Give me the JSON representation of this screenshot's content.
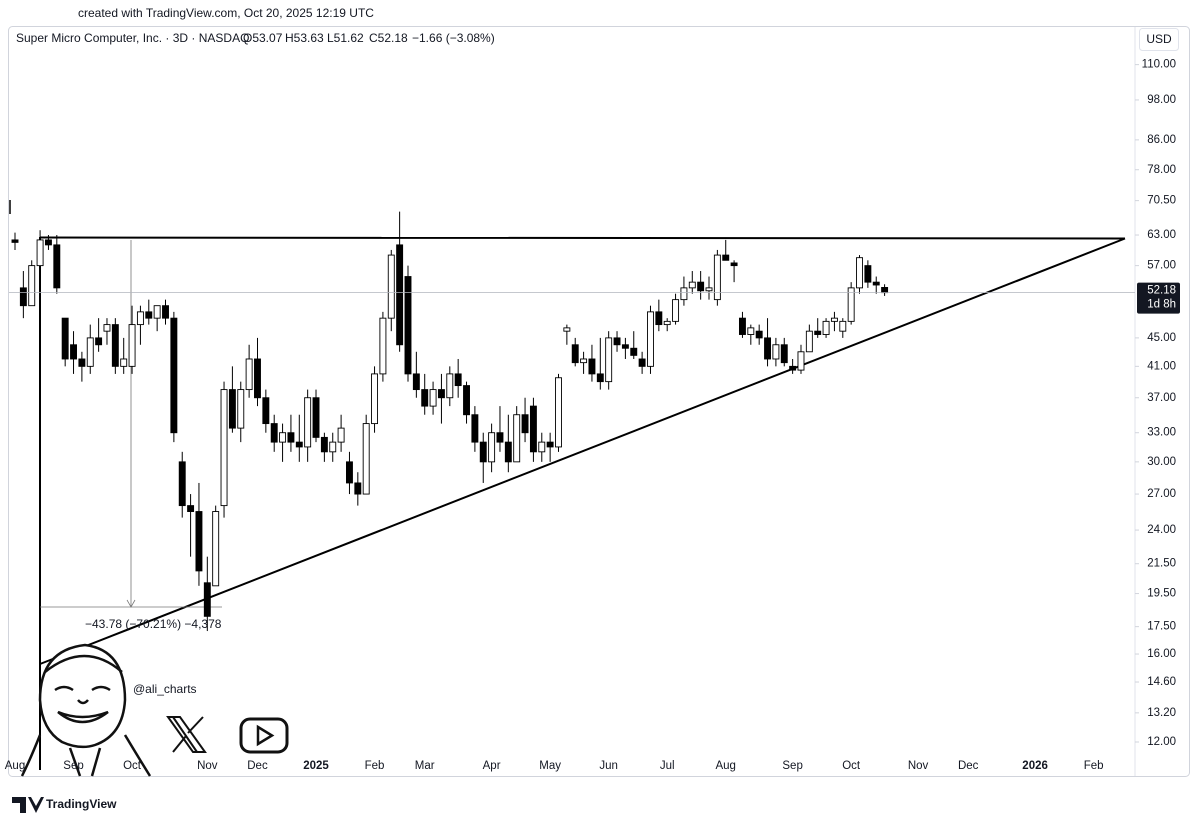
{
  "created": "created with TradingView.com, Oct 20, 2025 12:19 UTC",
  "watermark": "@ali_charts",
  "brand": "TradingView",
  "chart_data": {
    "type": "candlestick",
    "title": "Super Micro Computer, Inc. · 3D · NASDAQ",
    "ohlc": [
      "O53.07",
      "H53.63",
      "L51.62",
      "C52.18",
      "−1.66 (−3.08%)"
    ],
    "currency": "USD",
    "last_price": 52.18,
    "countdown": "1d 8h",
    "measure_label": "−43.78 (−70.21%) −4,378",
    "log_scale": true,
    "up_color": "#ffffff",
    "down_color": "#000000",
    "ylim": [
      11.5,
      124
    ],
    "yticks": [
      {
        "value": 110,
        "label": "110.00"
      },
      {
        "value": 98,
        "label": "98.00"
      },
      {
        "value": 86,
        "label": "86.00"
      },
      {
        "value": 78,
        "label": "78.00"
      },
      {
        "value": 70.5,
        "label": "70.50"
      },
      {
        "value": 63,
        "label": "63.00"
      },
      {
        "value": 57,
        "label": "57.00"
      },
      {
        "value": 45,
        "label": "45.00"
      },
      {
        "value": 41,
        "label": "41.00"
      },
      {
        "value": 37,
        "label": "37.00"
      },
      {
        "value": 33,
        "label": "33.00"
      },
      {
        "value": 30,
        "label": "30.00"
      },
      {
        "value": 27,
        "label": "27.00"
      },
      {
        "value": 24,
        "label": "24.00"
      },
      {
        "value": 21.5,
        "label": "21.50"
      },
      {
        "value": 19.5,
        "label": "19.50"
      },
      {
        "value": 17.5,
        "label": "17.50"
      },
      {
        "value": 16,
        "label": "16.00"
      },
      {
        "value": 14.6,
        "label": "14.60"
      },
      {
        "value": 13.2,
        "label": "13.20"
      },
      {
        "value": 12,
        "label": "12.00"
      }
    ],
    "categories": [
      "Aug",
      null,
      null,
      null,
      null,
      null,
      null,
      "Sep",
      null,
      null,
      null,
      null,
      null,
      null,
      "Oct",
      null,
      null,
      null,
      null,
      null,
      null,
      null,
      null,
      "Nov",
      null,
      null,
      null,
      null,
      null,
      "Dec",
      null,
      null,
      null,
      null,
      null,
      null,
      "2025",
      null,
      null,
      null,
      null,
      null,
      null,
      "Feb",
      null,
      null,
      null,
      null,
      null,
      "Mar",
      null,
      null,
      null,
      null,
      null,
      null,
      null,
      "Apr",
      null,
      null,
      null,
      null,
      null,
      null,
      "May",
      null,
      null,
      null,
      null,
      null,
      null,
      "Jun",
      null,
      null,
      null,
      null,
      null,
      null,
      "Jul",
      null,
      null,
      null,
      null,
      null,
      null,
      "Aug",
      null,
      null,
      null,
      null,
      null,
      null,
      null,
      "Sep",
      null,
      null,
      null,
      null,
      null,
      null,
      "Oct",
      null,
      null,
      null,
      null,
      null,
      null,
      null,
      "Nov",
      null,
      null,
      null,
      null,
      null,
      "Dec",
      null,
      null,
      null,
      null,
      null,
      null,
      null,
      "2026",
      null,
      null,
      null,
      null,
      null,
      null,
      "Feb",
      null
    ],
    "open": [
      62,
      53,
      50,
      57,
      62,
      61,
      48,
      44,
      42,
      41,
      45,
      46,
      47,
      41,
      41,
      47,
      49,
      48,
      50,
      48,
      30,
      26,
      25.5,
      20.2,
      20,
      26,
      38,
      33.5,
      38,
      42,
      37,
      34,
      32,
      33,
      32,
      31.5,
      37,
      32.5,
      31,
      32,
      30,
      28,
      27,
      34,
      40,
      48,
      61,
      55,
      40,
      38,
      36,
      38,
      37,
      40,
      38.5,
      35,
      32,
      30,
      33,
      32,
      30,
      35,
      36,
      31,
      32,
      31.5,
      46,
      44,
      41.5,
      42,
      40,
      39,
      45,
      44,
      43.5,
      42,
      41,
      49,
      47,
      47.5,
      51,
      53,
      54,
      52.5,
      51,
      59,
      57.5,
      48,
      45.5,
      46,
      45,
      42,
      44,
      41,
      40.5,
      43,
      46,
      45.5,
      47.5,
      46,
      47.5,
      53,
      57,
      54,
      53.07,
      null,
      null,
      null,
      null,
      null,
      null,
      null,
      null,
      null,
      null,
      null,
      null,
      null,
      null,
      null,
      null,
      null,
      null,
      null,
      null,
      null,
      null,
      null,
      null,
      null,
      null
    ],
    "high": [
      63.5,
      56,
      58,
      64,
      63,
      63,
      48,
      46,
      43,
      47,
      48,
      48,
      48,
      45,
      50,
      50,
      51,
      50,
      51,
      49,
      31,
      27,
      28,
      22,
      26,
      39,
      41,
      39,
      44,
      45,
      38,
      35,
      34,
      35,
      35,
      38,
      38,
      33,
      33,
      35,
      31,
      29,
      35,
      41,
      49,
      60,
      68,
      57,
      43,
      40,
      39,
      40,
      41,
      42,
      39,
      36,
      33,
      34,
      36,
      35,
      36,
      37,
      37,
      33,
      33,
      40,
      47,
      45,
      43,
      44,
      45,
      46,
      46,
      45,
      46,
      43,
      50,
      51,
      48,
      52,
      55,
      56,
      56,
      55,
      60,
      62,
      58,
      49,
      47,
      47,
      48,
      45,
      45,
      42,
      44,
      47,
      48,
      48,
      49,
      48,
      54,
      59,
      58,
      55,
      53.63,
      null,
      null,
      null,
      null,
      null,
      null,
      null,
      null,
      null,
      null,
      null,
      null,
      null,
      null,
      null,
      null,
      null,
      null,
      null,
      null,
      null,
      null,
      null,
      null,
      null,
      null
    ],
    "low": [
      60,
      48,
      50,
      56,
      60,
      52,
      41,
      40,
      39,
      40,
      43,
      44,
      40,
      40,
      40,
      44,
      47,
      46,
      47,
      32,
      25,
      22,
      20,
      17.25,
      20,
      25,
      33,
      32,
      37,
      36,
      33,
      31,
      30,
      31,
      30,
      30,
      32,
      30,
      30,
      31,
      27,
      26,
      27,
      33,
      39,
      46,
      43,
      39,
      37,
      35,
      35,
      34,
      36,
      37,
      34,
      31,
      28,
      29,
      31,
      29,
      30,
      32,
      30,
      30,
      30,
      31,
      44,
      41,
      40,
      39,
      38,
      38,
      43,
      42,
      42,
      40,
      40,
      46,
      46,
      47,
      50,
      52,
      51,
      51,
      50,
      58,
      54,
      45,
      44,
      44,
      41,
      41,
      41,
      40,
      40,
      43,
      45,
      45,
      46,
      45,
      47,
      52,
      53,
      52,
      51.62,
      null,
      null,
      null,
      null,
      null,
      null,
      null,
      null,
      null,
      null,
      null,
      null,
      null,
      null,
      null,
      null,
      null,
      null,
      null,
      null,
      null,
      null,
      null,
      null,
      null,
      null
    ],
    "close": [
      61.5,
      50,
      57,
      62,
      61,
      53,
      42,
      42,
      41,
      45,
      44,
      47,
      41,
      42,
      47,
      49,
      48,
      50,
      48,
      33,
      26,
      25.5,
      21,
      18.1,
      25.5,
      38,
      33.5,
      38,
      42,
      37,
      34,
      32,
      33,
      32,
      31.5,
      37,
      32.5,
      31,
      32,
      33.5,
      28,
      27,
      34,
      40,
      48,
      59,
      44,
      40,
      38,
      36,
      38,
      37,
      40,
      38.5,
      35,
      32,
      30,
      33,
      32,
      30,
      35,
      33,
      31,
      32,
      31.5,
      39.5,
      46.5,
      41.5,
      42,
      40,
      39,
      45,
      44,
      43.5,
      42.5,
      41,
      49,
      47,
      47.5,
      51,
      53,
      54,
      52.5,
      53,
      59,
      58,
      57,
      45.5,
      46.5,
      45,
      42,
      44,
      41.5,
      40.5,
      43,
      46,
      45.5,
      47.5,
      48,
      47.5,
      53,
      58.5,
      54,
      53.5,
      52.18,
      null,
      null,
      null,
      null,
      null,
      null,
      null,
      null,
      null,
      null,
      null,
      null,
      null,
      null,
      null,
      null,
      null,
      null,
      null,
      null,
      null,
      null,
      null,
      null,
      null,
      null
    ]
  }
}
